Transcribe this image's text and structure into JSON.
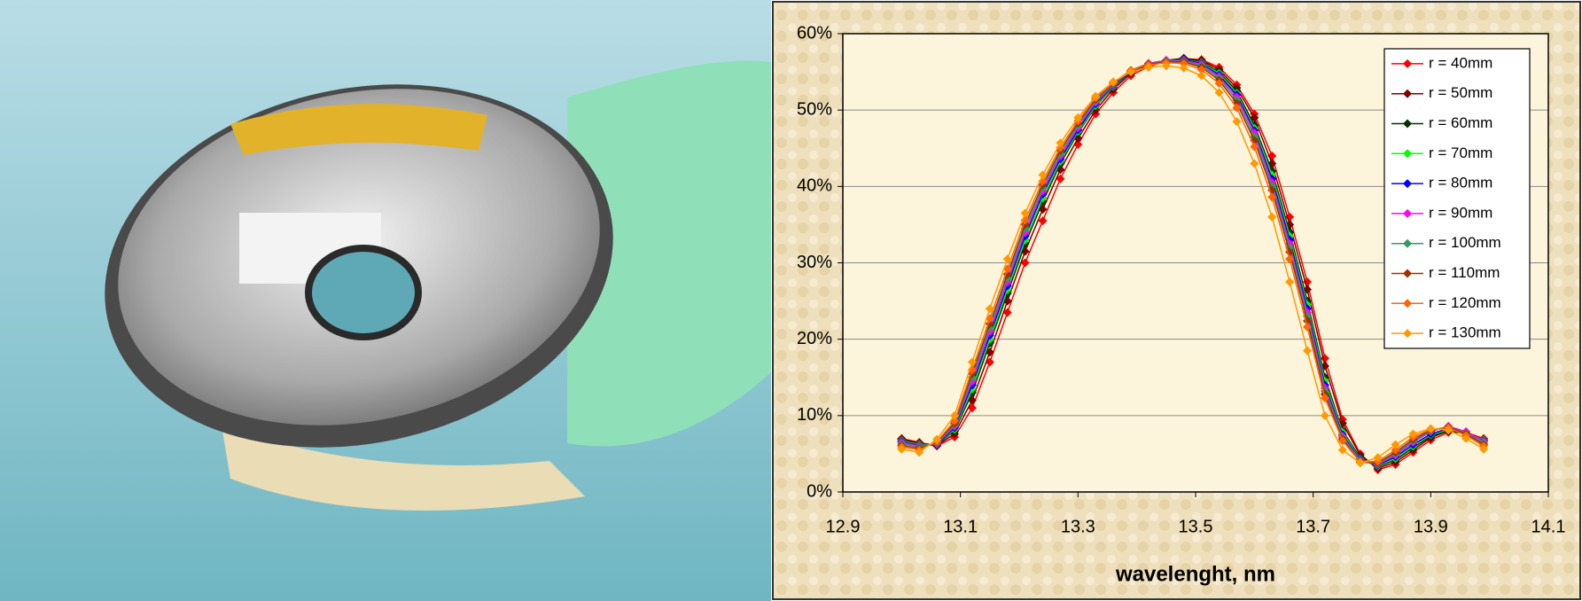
{
  "chart_data": {
    "type": "line",
    "x_label": "wavelenght, nm",
    "xlim": [
      12.9,
      14.1
    ],
    "xticks": [
      12.9,
      13.1,
      13.3,
      13.5,
      13.7,
      13.9,
      14.1
    ],
    "ylim": [
      0,
      60
    ],
    "yticks": [
      {
        "value": 0,
        "label": "0%"
      },
      {
        "value": 10,
        "label": "10%"
      },
      {
        "value": 20,
        "label": "20%"
      },
      {
        "value": 30,
        "label": "30%"
      },
      {
        "value": 40,
        "label": "40%"
      },
      {
        "value": 50,
        "label": "50%"
      },
      {
        "value": 60,
        "label": "60%"
      }
    ],
    "grid": true,
    "legend": "top-right",
    "x": [
      13.0,
      13.03,
      13.06,
      13.09,
      13.12,
      13.15,
      13.18,
      13.21,
      13.24,
      13.27,
      13.3,
      13.33,
      13.36,
      13.39,
      13.42,
      13.45,
      13.48,
      13.51,
      13.54,
      13.57,
      13.6,
      13.63,
      13.66,
      13.69,
      13.72,
      13.75,
      13.78,
      13.81,
      13.84,
      13.87,
      13.9,
      13.93,
      13.96,
      13.99
    ],
    "series": [
      {
        "name": "r = 40mm",
        "color": "#ff0000",
        "values": [
          7.0,
          6.5,
          6.0,
          7.2,
          11,
          17,
          23.5,
          30,
          35.5,
          41,
          45.5,
          49.5,
          52.3,
          54.5,
          55.7,
          56.4,
          56.7,
          56.6,
          55.6,
          53.3,
          49.5,
          44,
          36,
          27.5,
          17.5,
          9.5,
          5,
          2.9,
          3.6,
          5.2,
          6.8,
          7.8,
          7.8,
          7.0
        ]
      },
      {
        "name": "r = 50mm",
        "color": "#800000",
        "values": [
          6.9,
          6.4,
          6.1,
          7.6,
          12,
          18.3,
          25,
          31.5,
          37,
          42.2,
          46.3,
          50,
          52.7,
          54.8,
          55.9,
          56.5,
          56.8,
          56.5,
          55.3,
          52.9,
          49,
          43,
          35,
          26.5,
          16.5,
          9,
          4.8,
          3.1,
          3.9,
          5.5,
          7.1,
          8,
          7.7,
          6.9
        ]
      },
      {
        "name": "r = 60mm",
        "color": "#003300",
        "values": [
          6.8,
          6.3,
          6.2,
          8.0,
          13,
          19.5,
          26,
          32.5,
          38,
          43,
          47,
          50.5,
          53,
          55,
          56,
          56.5,
          56.7,
          56.3,
          55,
          52.5,
          48,
          42,
          34,
          25,
          15,
          8,
          4.5,
          3.3,
          4.2,
          5.8,
          7.3,
          8.0,
          7.6,
          6.8
        ]
      },
      {
        "name": "r = 70mm",
        "color": "#00ff00",
        "values": [
          6.7,
          6.2,
          6.2,
          8.2,
          13.5,
          20,
          26.5,
          33,
          38.5,
          43.3,
          47.2,
          50.6,
          53.1,
          55.1,
          56.1,
          56.5,
          56.6,
          56.2,
          54.8,
          52.2,
          47.6,
          41.5,
          33.5,
          24.5,
          14.5,
          7.8,
          4.3,
          3.4,
          4.4,
          6,
          7.5,
          8.2,
          7.7,
          6.8
        ]
      },
      {
        "name": "r = 80mm",
        "color": "#0000ff",
        "values": [
          6.6,
          6.1,
          6.2,
          8.4,
          14,
          20.5,
          27,
          33.5,
          39,
          43.6,
          47.4,
          50.8,
          53.2,
          55.1,
          56.1,
          56.5,
          56.6,
          56.1,
          54.6,
          52,
          47.3,
          41,
          33,
          24,
          14,
          7.5,
          4.2,
          3.5,
          4.6,
          6.2,
          7.6,
          8.3,
          7.7,
          6.7
        ]
      },
      {
        "name": "r = 90mm",
        "color": "#ff00ff",
        "values": [
          6.5,
          6.0,
          6.3,
          8.6,
          14.5,
          21,
          27.5,
          34,
          39.4,
          44,
          47.7,
          51,
          53.3,
          55.2,
          56.1,
          56.5,
          56.5,
          56,
          54.4,
          51.7,
          47,
          40.5,
          32.5,
          23.5,
          13.6,
          7.3,
          4.1,
          3.6,
          4.8,
          6.5,
          7.9,
          8.6,
          7.9,
          6.6
        ]
      },
      {
        "name": "r = 100mm",
        "color": "#339966",
        "values": [
          6.3,
          5.9,
          6.4,
          8.8,
          15,
          21.5,
          28,
          34.5,
          39.8,
          44.3,
          48,
          51.2,
          53.4,
          55.2,
          56,
          56.4,
          56.4,
          55.8,
          54.2,
          51.3,
          46.5,
          40,
          32,
          23,
          13.2,
          7.1,
          4,
          3.7,
          5,
          6.7,
          8,
          8.5,
          7.7,
          6.4
        ]
      },
      {
        "name": "r = 110mm",
        "color": "#993300",
        "values": [
          6.1,
          5.7,
          6.5,
          9,
          15.5,
          22,
          28.5,
          35,
          40.2,
          44.7,
          48.3,
          51.4,
          53.5,
          55.2,
          56,
          56.3,
          56.3,
          55.6,
          53.9,
          50.9,
          46,
          39.5,
          31.4,
          22.4,
          12.8,
          6.9,
          3.9,
          3.8,
          5.2,
          6.9,
          8.1,
          8.5,
          7.6,
          6.2
        ]
      },
      {
        "name": "r = 120mm",
        "color": "#ff6600",
        "values": [
          5.9,
          5.5,
          6.6,
          9.3,
          16,
          22.7,
          29.2,
          35.6,
          40.7,
          45.1,
          48.6,
          51.6,
          53.6,
          55.2,
          55.9,
          56.2,
          56.1,
          55.3,
          53.5,
          50.3,
          45.2,
          38.6,
          30.5,
          21.6,
          12.3,
          6.7,
          3.9,
          4,
          5.5,
          7.2,
          8.2,
          8.4,
          7.4,
          6.0
        ]
      },
      {
        "name": "r = 130mm",
        "color": "#ff9900",
        "values": [
          5.6,
          5.2,
          6.9,
          10,
          17,
          24,
          30.5,
          36.5,
          41.5,
          45.7,
          49,
          51.8,
          53.7,
          55,
          55.6,
          55.8,
          55.5,
          54.5,
          52.3,
          48.5,
          43,
          36,
          27.5,
          18.5,
          10,
          5.5,
          3.8,
          4.5,
          6.2,
          7.6,
          8.3,
          8.1,
          7.0,
          5.6
        ]
      }
    ]
  }
}
